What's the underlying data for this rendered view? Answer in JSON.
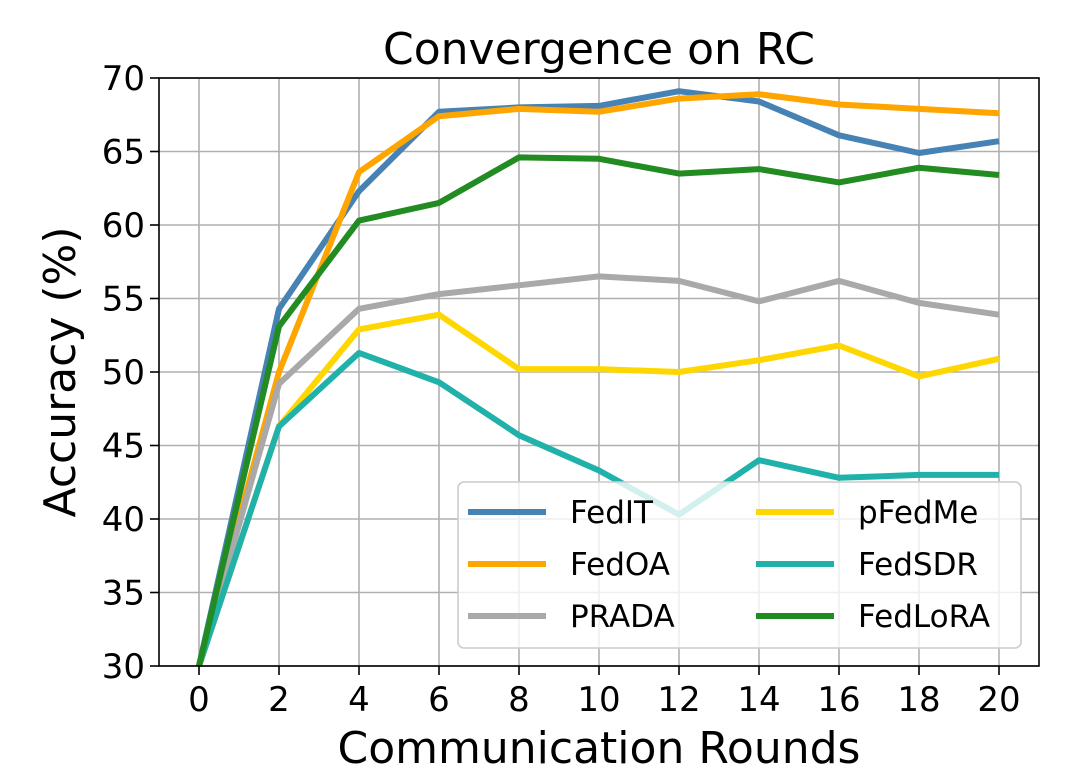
{
  "chart_data": {
    "type": "line",
    "title": "Convergence on RC",
    "xlabel": "Communication Rounds",
    "ylabel": "Accuracy (%)",
    "x": [
      0,
      2,
      4,
      6,
      8,
      10,
      12,
      14,
      16,
      18,
      20
    ],
    "xticks": [
      "0",
      "2",
      "4",
      "6",
      "8",
      "10",
      "12",
      "14",
      "16",
      "18",
      "20"
    ],
    "xlim": [
      -1,
      21
    ],
    "ylim": [
      30,
      70
    ],
    "yticks": [
      "30",
      "35",
      "40",
      "45",
      "50",
      "55",
      "60",
      "65",
      "70"
    ],
    "grid": true,
    "legend_position": "lower-right",
    "legend_columns": 2,
    "series": [
      {
        "name": "FedIT",
        "color": "#4682b4",
        "values": [
          30.0,
          54.3,
          62.3,
          67.7,
          68.0,
          68.1,
          69.1,
          68.4,
          66.1,
          64.9,
          65.7
        ]
      },
      {
        "name": "FedOA",
        "color": "#ffa500",
        "values": [
          30.0,
          50.0,
          63.6,
          67.4,
          67.9,
          67.7,
          68.6,
          68.9,
          68.2,
          67.9,
          67.6
        ]
      },
      {
        "name": "PRADA",
        "color": "#a9a9a9",
        "values": [
          30.0,
          49.2,
          54.3,
          55.3,
          55.9,
          56.5,
          56.2,
          54.8,
          56.2,
          54.7,
          53.9
        ]
      },
      {
        "name": "pFedMe",
        "color": "#ffd700",
        "values": [
          30.0,
          46.3,
          52.9,
          53.9,
          50.2,
          50.2,
          50.0,
          50.8,
          51.8,
          49.7,
          50.9
        ]
      },
      {
        "name": "FedSDR",
        "color": "#20b2aa",
        "values": [
          30.0,
          46.3,
          51.3,
          49.3,
          45.7,
          43.3,
          40.3,
          44.0,
          42.8,
          43.0,
          43.0
        ]
      },
      {
        "name": "FedLoRA",
        "color": "#228b22",
        "values": [
          30.0,
          53.1,
          60.3,
          61.5,
          64.6,
          64.5,
          63.5,
          63.8,
          62.9,
          63.9,
          63.4
        ]
      }
    ]
  }
}
